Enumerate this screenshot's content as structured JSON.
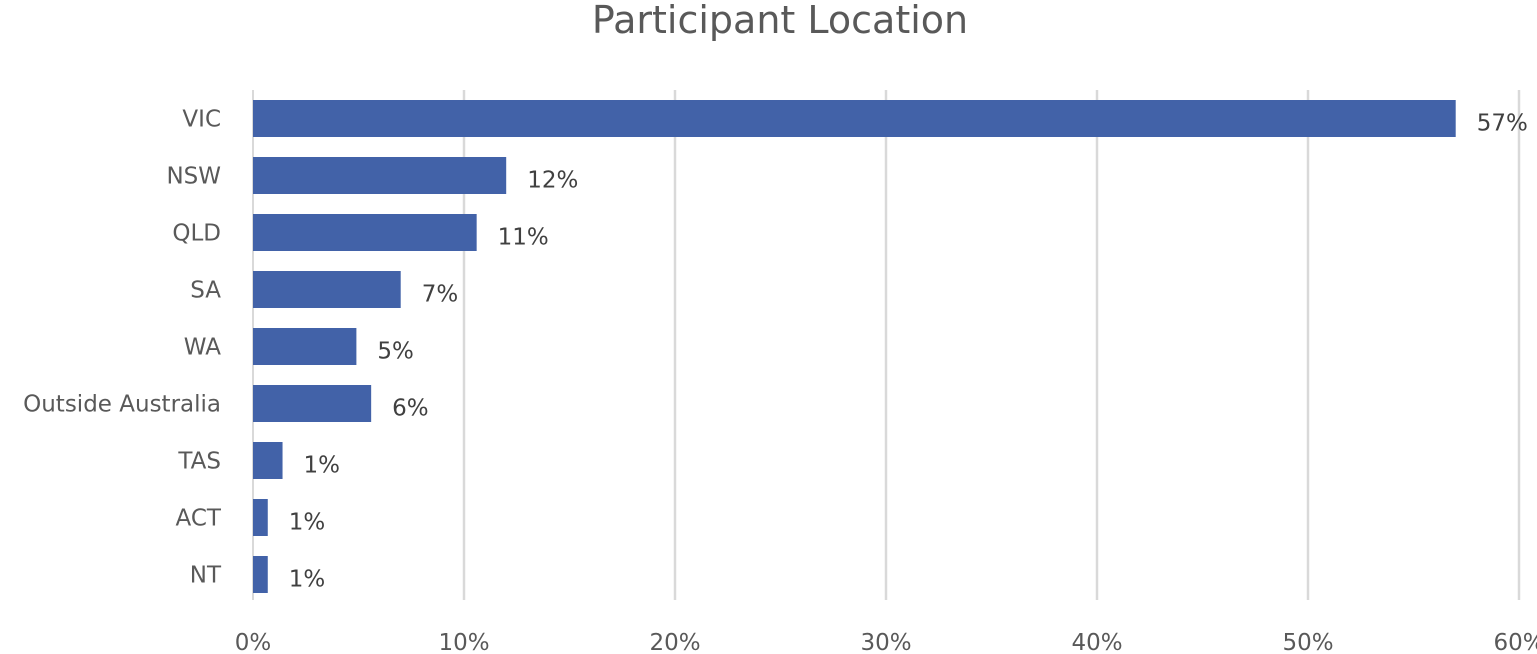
{
  "chart_data": {
    "type": "bar",
    "orientation": "horizontal",
    "title": "Participant Location",
    "xlabel": "",
    "ylabel": "",
    "categories": [
      "VIC",
      "NSW",
      "QLD",
      "SA",
      "WA",
      "Outside Australia",
      "TAS",
      "ACT",
      "NT"
    ],
    "values": [
      57,
      12,
      10.6,
      7,
      4.9,
      5.6,
      1.4,
      0.7,
      0.7
    ],
    "data_labels": [
      "57%",
      "12%",
      "11%",
      "7%",
      "5%",
      "6%",
      "1%",
      "1%",
      "1%"
    ],
    "xlim": [
      0,
      60
    ],
    "x_ticks": [
      "0%",
      "10%",
      "20%",
      "30%",
      "40%",
      "50%",
      "60%"
    ],
    "grid": "vertical",
    "legend": "none",
    "colors": {
      "bar": "#4262A8",
      "grid": "#D9D9D9",
      "text": "#595959"
    }
  }
}
